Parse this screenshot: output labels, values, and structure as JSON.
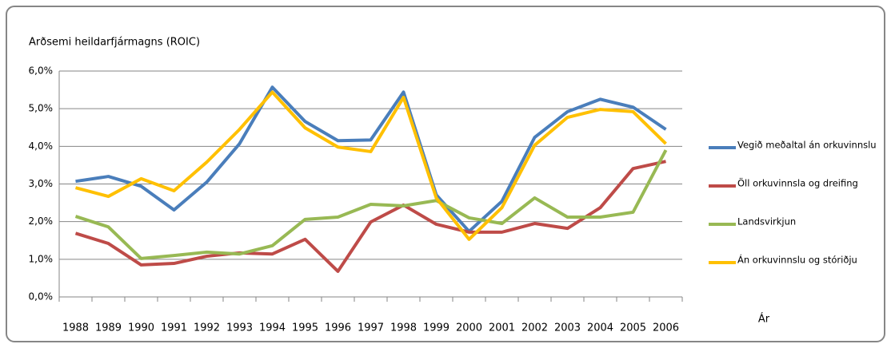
{
  "chart_data": {
    "type": "line",
    "title": "Arðsemi heildarfjármagns (ROIC)",
    "x_label": "Ár",
    "categories": [
      "1988",
      "1989",
      "1990",
      "1991",
      "1992",
      "1993",
      "1994",
      "1995",
      "1996",
      "1997",
      "1998",
      "1999",
      "2000",
      "2001",
      "2002",
      "2003",
      "2004",
      "2005",
      "2006"
    ],
    "series": [
      {
        "name": "Vegið meðaltal án orkuvinnslu",
        "color": "#4a7ebb",
        "values": [
          3.07,
          3.2,
          2.94,
          2.31,
          3.05,
          4.07,
          5.57,
          4.66,
          4.15,
          4.17,
          5.44,
          2.71,
          1.74,
          2.54,
          4.24,
          4.92,
          5.25,
          5.04,
          4.45
        ]
      },
      {
        "name": "Öll orkuvinnsla og dreifing",
        "color": "#be4b48",
        "values": [
          1.69,
          1.42,
          0.85,
          0.89,
          1.08,
          1.17,
          1.14,
          1.53,
          0.68,
          1.99,
          2.44,
          1.93,
          1.72,
          1.72,
          1.95,
          1.82,
          2.37,
          3.41,
          3.6
        ]
      },
      {
        "name": "Landsvirkjun",
        "color": "#98b954",
        "values": [
          2.14,
          1.86,
          1.02,
          1.1,
          1.19,
          1.14,
          1.36,
          2.06,
          2.12,
          2.46,
          2.42,
          2.56,
          2.1,
          1.95,
          2.63,
          2.12,
          2.12,
          2.25,
          3.9
        ]
      },
      {
        "name": "Án orkuvinnslu og stóriðju",
        "color": "#ffc000",
        "values": [
          2.9,
          2.67,
          3.14,
          2.82,
          3.58,
          4.45,
          5.44,
          4.49,
          3.98,
          3.86,
          5.3,
          2.63,
          1.53,
          2.37,
          4.03,
          4.77,
          4.98,
          4.92,
          4.07
        ]
      }
    ],
    "ylim": [
      0,
      6
    ],
    "yticks": [
      {
        "value": 0,
        "label": "0,0%"
      },
      {
        "value": 1,
        "label": "1,0%"
      },
      {
        "value": 2,
        "label": "2,0%"
      },
      {
        "value": 3,
        "label": "3,0%"
      },
      {
        "value": 4,
        "label": "4,0%"
      },
      {
        "value": 5,
        "label": "5,0%"
      },
      {
        "value": 6,
        "label": "6,0%"
      }
    ],
    "grid": true,
    "legend": "right"
  }
}
